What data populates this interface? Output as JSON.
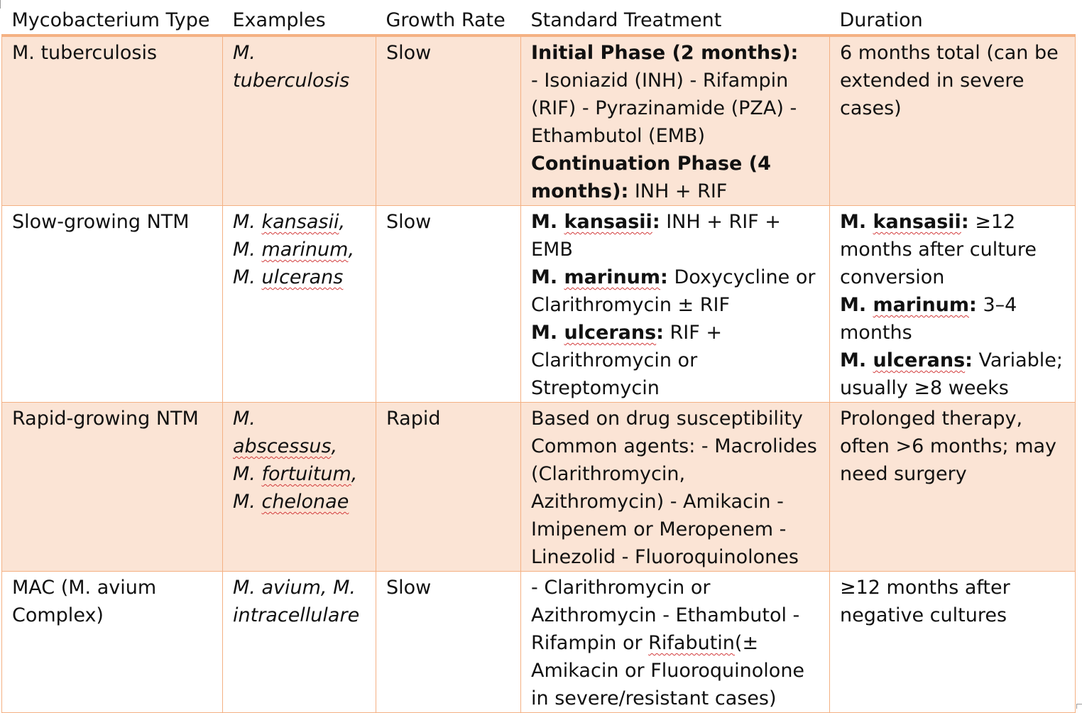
{
  "headers": [
    "Mycobacterium Type",
    "Examples",
    "Growth Rate",
    "Standard Treatment",
    "Duration"
  ],
  "colors": {
    "header_rule": "#f4b183",
    "shaded_fill": "#fbe4d5",
    "grid": "#f4b183"
  },
  "rows": [
    {
      "type": "M. tuberculosis",
      "examples": [
        "M. tuberculosis"
      ],
      "growth": "Slow",
      "treatment": [
        [
          {
            "t": "Initial Phase (2 months):",
            "b": true
          }
        ],
        [
          {
            "t": "- Isoniazid (INH) - Rifampin (RIF) - Pyrazinamide (PZA) - Ethambutol (EMB)"
          }
        ],
        [
          {
            "t": "Continuation Phase (4 months):",
            "b": true
          },
          {
            "t": " INH + RIF"
          }
        ]
      ],
      "duration": [
        [
          {
            "t": "6 months total (can be extended in severe cases)"
          }
        ]
      ]
    },
    {
      "type": "Slow-growing NTM",
      "examples": [
        "M. kansasii,",
        "M. marinum,",
        "M. ulcerans"
      ],
      "growth": "Slow",
      "treatment": [
        [
          {
            "t": "M. ",
            "b": true
          },
          {
            "t": "kansasii",
            "b": true,
            "sq": true
          },
          {
            "t": ":",
            "b": true
          },
          {
            "t": " INH + RIF + EMB"
          }
        ],
        [
          {
            "t": "M. ",
            "b": true
          },
          {
            "t": "marinum",
            "b": true,
            "sq": true
          },
          {
            "t": ":",
            "b": true
          },
          {
            "t": " Doxycycline or Clarithromycin ± RIF"
          }
        ],
        [
          {
            "t": "M. ",
            "b": true
          },
          {
            "t": "ulcerans",
            "b": true,
            "sq": true
          },
          {
            "t": ":",
            "b": true
          },
          {
            "t": " RIF + Clarithromycin or Streptomycin"
          }
        ]
      ],
      "duration": [
        [
          {
            "t": "M. ",
            "b": true
          },
          {
            "t": "kansasii",
            "b": true,
            "sq": true
          },
          {
            "t": ":",
            "b": true
          },
          {
            "t": " ≥12 months after culture conversion"
          }
        ],
        [
          {
            "t": "M. ",
            "b": true
          },
          {
            "t": "marinum",
            "b": true,
            "sq": true
          },
          {
            "t": ":",
            "b": true
          },
          {
            "t": " 3–4 months"
          }
        ],
        [
          {
            "t": "M. ",
            "b": true
          },
          {
            "t": "ulcerans",
            "b": true,
            "sq": true
          },
          {
            "t": ":",
            "b": true
          },
          {
            "t": " Variable; usually ≥8 weeks"
          }
        ]
      ]
    },
    {
      "type": "Rapid-growing NTM",
      "examples": [
        "M. abscessus,",
        "M. fortuitum,",
        "M. chelonae"
      ],
      "growth": "Rapid",
      "treatment": [
        [
          {
            "t": "Based on drug susceptibility"
          }
        ],
        [
          {
            "t": "Common agents: - Macrolides (Clarithromycin, Azithromycin) - Amikacin - Imipenem or Meropenem - Linezolid - Fluoroquinolones"
          }
        ]
      ],
      "duration": [
        [
          {
            "t": "Prolonged therapy, often >6 months; may need surgery"
          }
        ]
      ]
    },
    {
      "type": "MAC (M. avium Complex)",
      "examples": [
        "M. avium, M. intracellulare"
      ],
      "growth": "Slow",
      "treatment": [
        [
          {
            "t": "- Clarithromycin or Azithromycin - Ethambutol - Rifampin or "
          },
          {
            "t": "Rifabutin",
            "sq": true
          },
          {
            "t": "(± Amikacin or Fluoroquinolone in severe/resistant cases)"
          }
        ]
      ],
      "duration": [
        [
          {
            "t": "≥12 months after negative cultures"
          }
        ]
      ]
    }
  ]
}
